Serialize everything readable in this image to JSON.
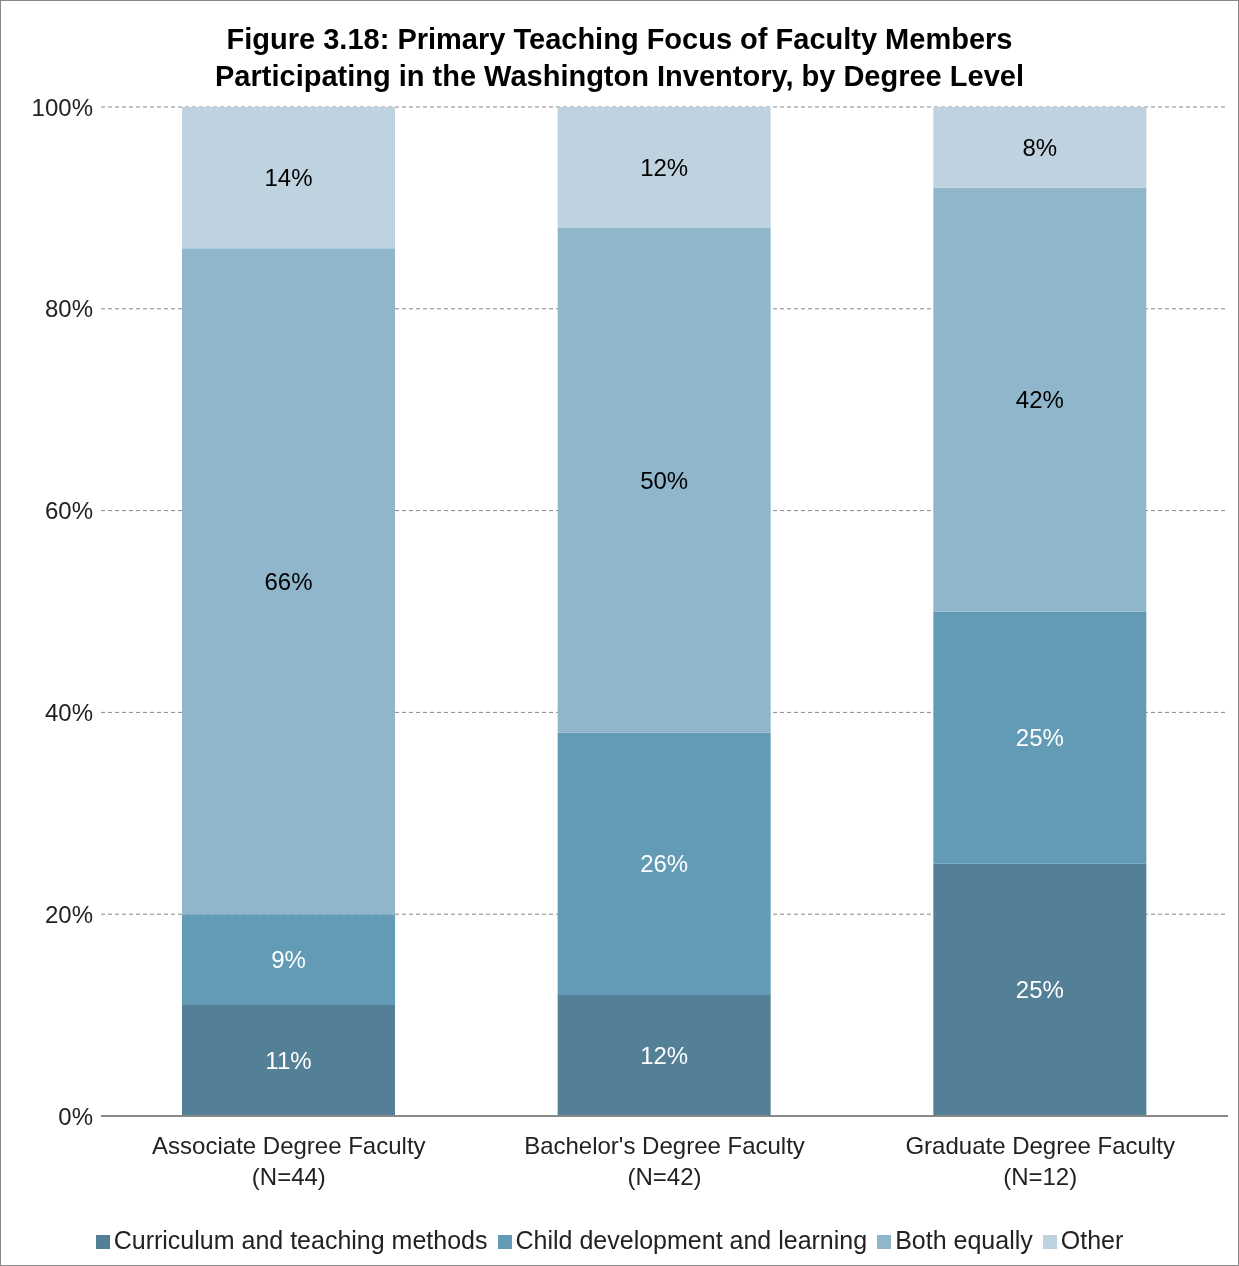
{
  "chart_data": {
    "type": "bar",
    "title": "Figure 3.18: Primary Teaching Focus of Faculty Members Participating in the Washington Inventory, by Degree Level",
    "categories": [
      "Associate Degree Faculty (N=44)",
      "Bachelor's Degree Faculty (N=42)",
      "Graduate Degree Faculty (N=12)"
    ],
    "stacked": true,
    "series": [
      {
        "name": "Curriculum and teaching methods",
        "color": "#537f97",
        "values": [
          11,
          12,
          25
        ],
        "value_labels": [
          "11%",
          "12%",
          "25%"
        ]
      },
      {
        "name": "Child development and learning",
        "color": "#639bb6",
        "values": [
          9,
          26,
          25
        ],
        "value_labels": [
          "9%",
          "26%",
          "25%"
        ]
      },
      {
        "name": "Both equally",
        "color": "#8fb6cb",
        "values": [
          66,
          50,
          42
        ],
        "value_labels": [
          "66%",
          "50%",
          "42%"
        ]
      },
      {
        "name": "Other",
        "color": "#bed3df",
        "values": [
          14,
          12,
          8
        ],
        "value_labels": [
          "14%",
          "12%",
          "8%"
        ]
      }
    ],
    "ylim": [
      0,
      100
    ],
    "yticks": [
      {
        "value": 0,
        "label": "0%"
      },
      {
        "value": 20,
        "label": "20%"
      },
      {
        "value": 40,
        "label": "40%"
      },
      {
        "value": 60,
        "label": "60%"
      },
      {
        "value": 80,
        "label": "80%"
      },
      {
        "value": 100,
        "label": "100%"
      }
    ],
    "grid": "y",
    "legend": "bottom"
  }
}
